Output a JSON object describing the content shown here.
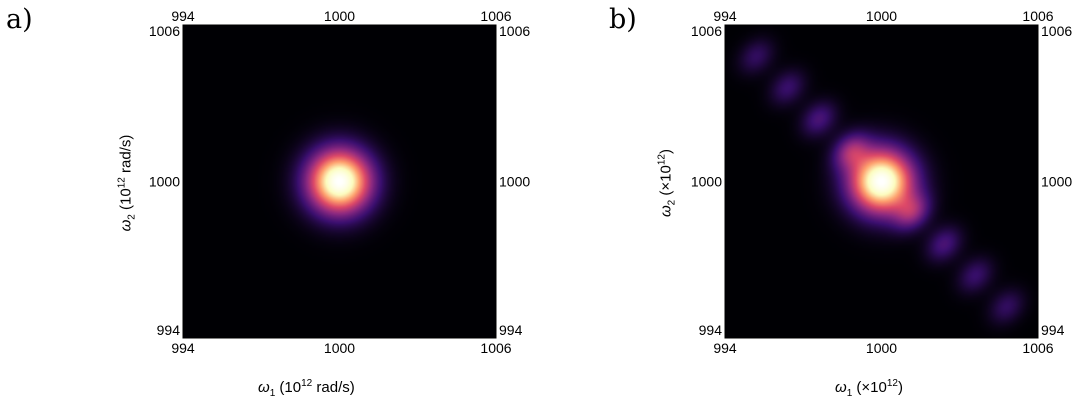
{
  "chart_data": [
    {
      "panel_label": "a)",
      "type": "heatmap",
      "xlabel": {
        "symbol": "ω",
        "sub": "1",
        "prefix": "(10",
        "sup": "12",
        "suffix": " rad/s)"
      },
      "ylabel": {
        "symbol": "ω",
        "sub": "2",
        "prefix": "(10",
        "sup": "12",
        "suffix": " rad/s)"
      },
      "xlim": [
        994,
        1006
      ],
      "ylim": [
        994,
        1006
      ],
      "xticks": [
        "994",
        "1000",
        "1006"
      ],
      "yticks": [
        "994",
        "1000",
        "1006"
      ],
      "colormap": [
        "#000004",
        "#3b0f70",
        "#8c2981",
        "#de4968",
        "#fe9f6d",
        "#fcfdbf",
        "#ffffff"
      ],
      "distribution": {
        "center": [
          1000,
          1000
        ],
        "sigma": 0.9,
        "sidelobes": []
      }
    },
    {
      "panel_label": "b)",
      "type": "heatmap",
      "xlabel": {
        "symbol": "ω",
        "sub": "1",
        "prefix": "(×10",
        "sup": "12",
        "suffix": ")"
      },
      "ylabel": {
        "symbol": "ω",
        "sub": "2",
        "prefix": "(×10",
        "sup": "12",
        "suffix": ")"
      },
      "xlim": [
        994,
        1006
      ],
      "ylim": [
        994,
        1006
      ],
      "xticks": [
        "994",
        "1000",
        "1006"
      ],
      "yticks": [
        "994",
        "1000",
        "1006"
      ],
      "colormap": [
        "#000004",
        "#3b0f70",
        "#8c2981",
        "#de4968",
        "#fe9f6d",
        "#fcfdbf",
        "#ffffff"
      ],
      "distribution": {
        "center": [
          1000,
          1000
        ],
        "sigma": 0.9,
        "sidelobes": [
          {
            "x": 995.2,
            "y": 1004.8,
            "amp": 0.18
          },
          {
            "x": 996.4,
            "y": 1003.6,
            "amp": 0.2
          },
          {
            "x": 997.6,
            "y": 1002.4,
            "amp": 0.24
          },
          {
            "x": 998.8,
            "y": 1001.2,
            "amp": 0.3
          },
          {
            "x": 1001.2,
            "y": 998.8,
            "amp": 0.3
          },
          {
            "x": 1002.4,
            "y": 997.6,
            "amp": 0.24
          },
          {
            "x": 1003.6,
            "y": 996.4,
            "amp": 0.2
          },
          {
            "x": 1004.8,
            "y": 995.2,
            "amp": 0.18
          }
        ]
      }
    }
  ]
}
